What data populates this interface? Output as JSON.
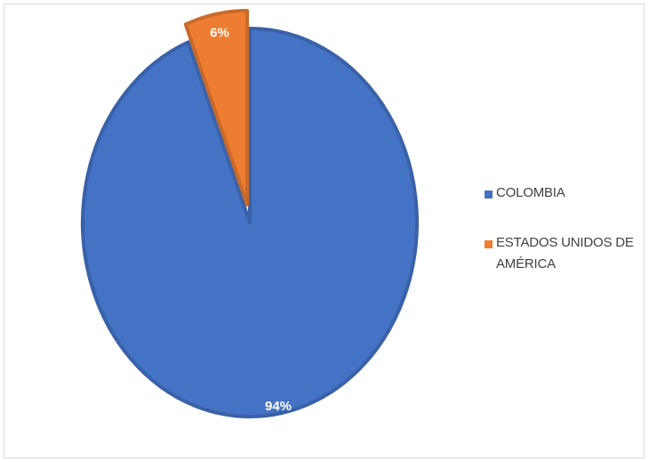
{
  "chart_data": {
    "type": "pie",
    "title": "",
    "categories": [
      "COLOMBIA",
      "ESTADOS UNIDOS DE AMÉRICA"
    ],
    "values": [
      94,
      6
    ],
    "data_labels": [
      "94%",
      "6%"
    ],
    "colors": [
      "#4472C4",
      "#ED7D31"
    ],
    "legend_position": "right",
    "legend": [
      "COLOMBIA",
      "ESTADOS UNIDOS DE AMÉRICA"
    ]
  },
  "colors": {
    "label_text": "#FFFFFF",
    "border": "#D9D9D9"
  }
}
